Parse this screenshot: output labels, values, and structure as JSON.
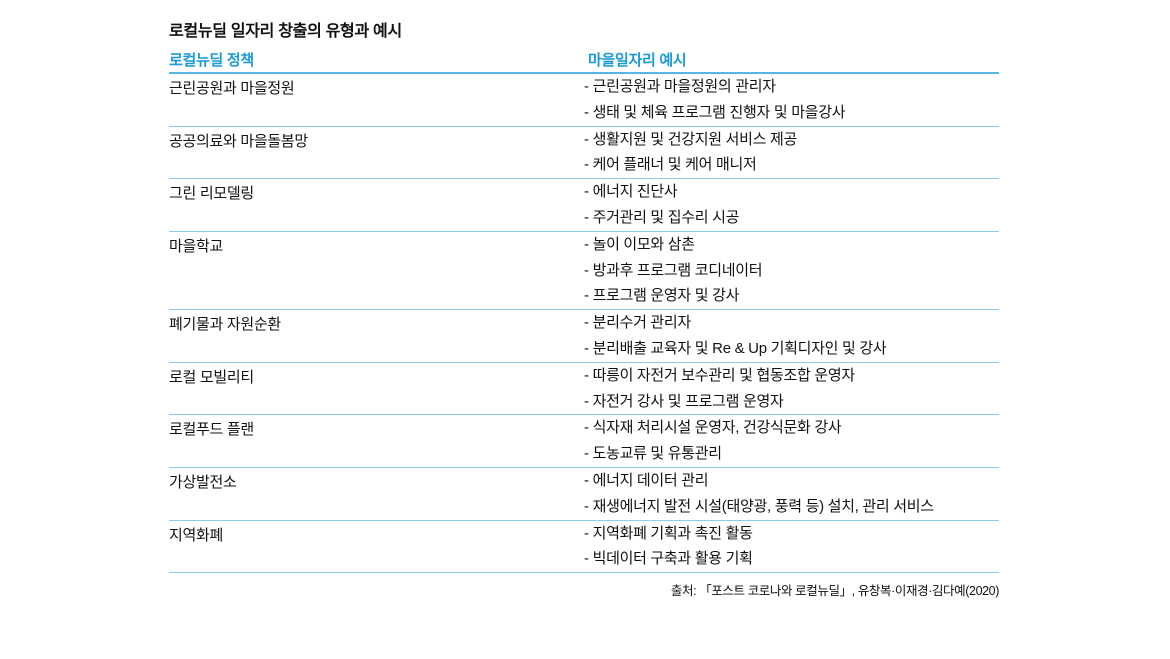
{
  "title": "로컬뉴딜 일자리 창출의 유형과 예시",
  "headers": {
    "policy": "로컬뉴딜 정책",
    "examples": "마을일자리 예시"
  },
  "colors": {
    "header_text": "#1a9ad9",
    "rule": "#5ab4e5",
    "row_rule": "#8fcdee"
  },
  "rows": [
    {
      "policy": "근린공원과 마을정원",
      "examples": [
        "- 근린공원과 마을정원의 관리자",
        "- 생태 및 체육 프로그램 진행자 및 마을강사"
      ]
    },
    {
      "policy": "공공의료와 마을돌봄망",
      "examples": [
        "- 생활지원 및 건강지원 서비스 제공",
        "- 케어 플래너 및 케어 매니저"
      ]
    },
    {
      "policy": "그린 리모델링",
      "examples": [
        "- 에너지 진단사",
        "- 주거관리 및 집수리 시공"
      ]
    },
    {
      "policy": "마을학교",
      "examples": [
        "- 놀이 이모와 삼촌",
        "- 방과후 프로그램 코디네이터",
        "- 프로그램 운영자 및 강사"
      ]
    },
    {
      "policy": "폐기물과 자원순환",
      "examples": [
        "- 분리수거 관리자",
        "- 분리배출 교육자 및 Re & Up 기획디자인 및 강사"
      ]
    },
    {
      "policy": "로컬 모빌리티",
      "examples": [
        "- 따릉이 자전거 보수관리 및 협동조합 운영자",
        "- 자전거 강사 및 프로그램 운영자"
      ]
    },
    {
      "policy": "로컬푸드 플랜",
      "examples": [
        "- 식자재 처리시설 운영자, 건강식문화 강사",
        "- 도농교류 및 유통관리"
      ]
    },
    {
      "policy": "가상발전소",
      "examples": [
        "- 에너지 데이터 관리",
        "- 재생에너지 발전 시설(태양광, 풍력 등) 설치, 관리 서비스"
      ]
    },
    {
      "policy": "지역화폐",
      "examples": [
        "- 지역화폐 기획과 촉진 활동",
        "- 빅데이터 구축과 활용 기획"
      ]
    }
  ],
  "source": "출처: 「포스트 코로나와 로컬뉴딜」, 유창복·이재경·김다예(2020)"
}
